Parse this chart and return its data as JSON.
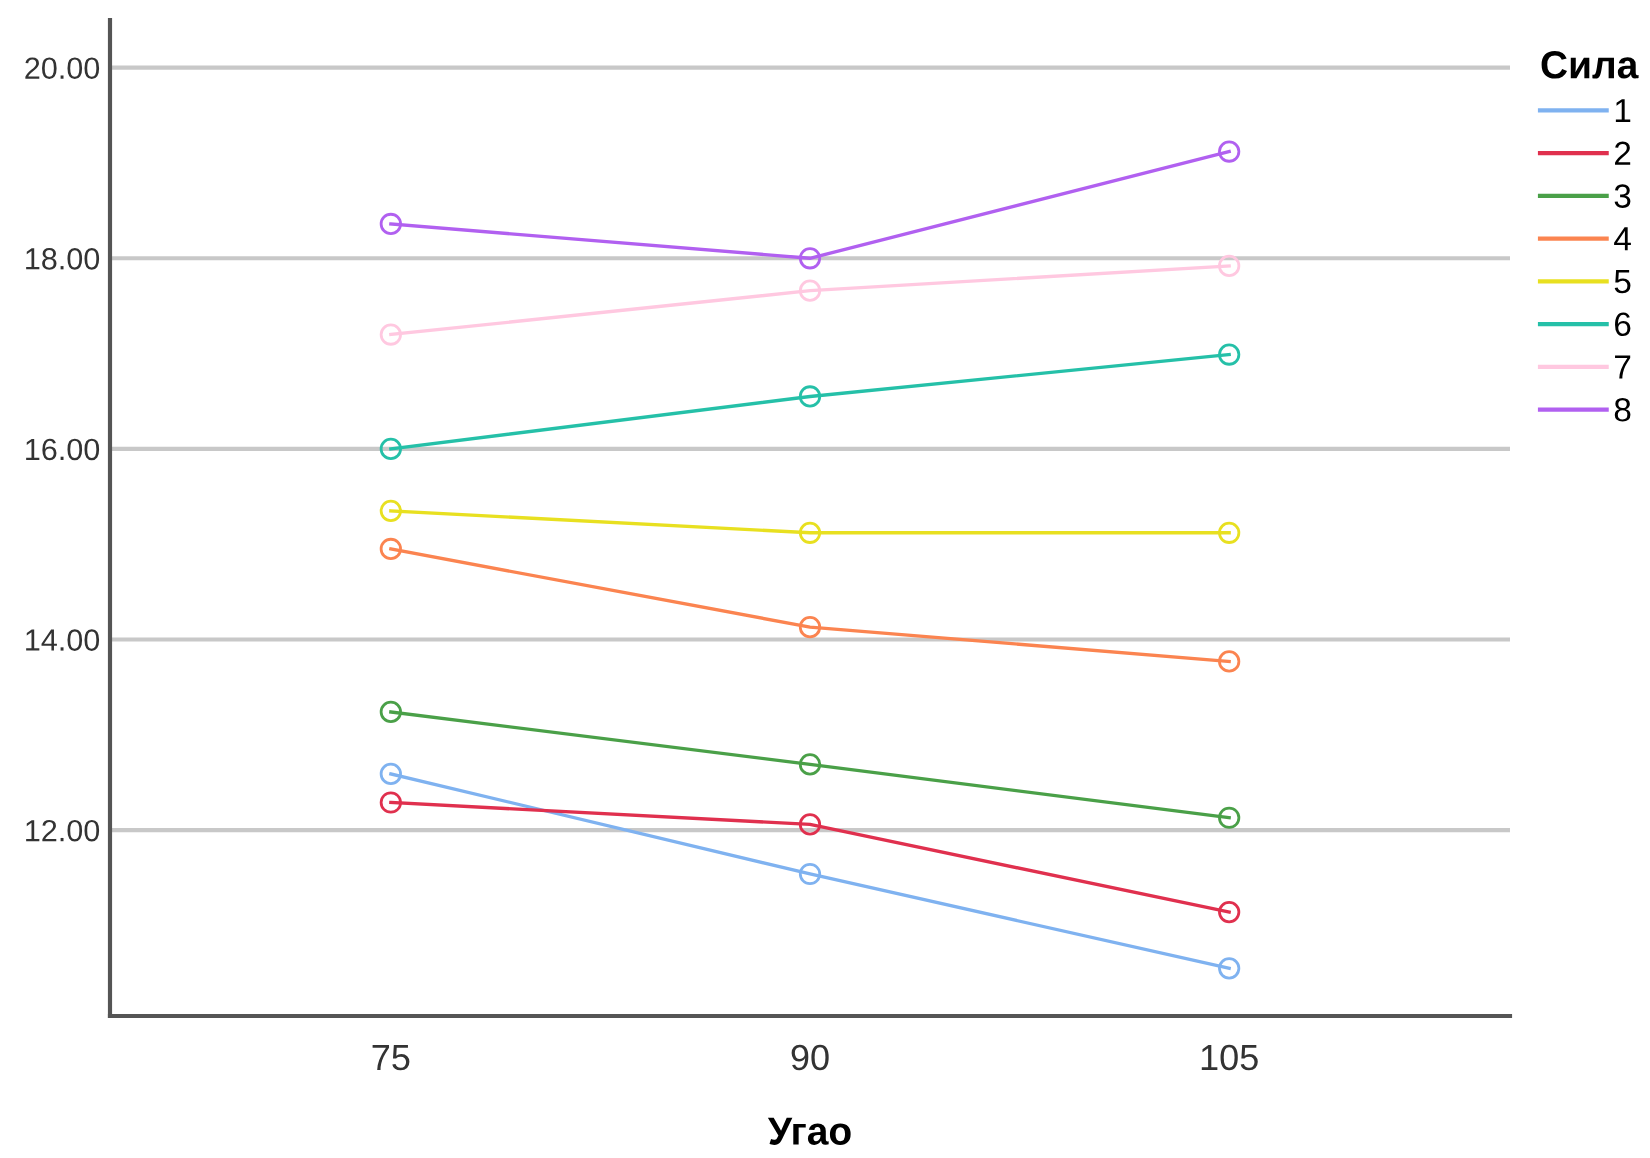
{
  "chart_data": {
    "type": "line",
    "xlabel": "Угао",
    "legend_title": "Сила",
    "categories": [
      "75",
      "90",
      "105"
    ],
    "series": [
      {
        "name": "1",
        "color": "#7fb2f0",
        "values": [
          12.59,
          11.54,
          10.55
        ]
      },
      {
        "name": "2",
        "color": "#e0304e",
        "values": [
          12.29,
          12.06,
          11.14
        ]
      },
      {
        "name": "3",
        "color": "#4aa048",
        "values": [
          13.24,
          12.69,
          12.13
        ]
      },
      {
        "name": "4",
        "color": "#fb8450",
        "values": [
          14.95,
          14.13,
          13.77
        ]
      },
      {
        "name": "5",
        "color": "#e8e020",
        "values": [
          15.35,
          15.12,
          15.12
        ]
      },
      {
        "name": "6",
        "color": "#25c0a8",
        "values": [
          16.0,
          16.55,
          16.99
        ]
      },
      {
        "name": "7",
        "color": "#ffc8e0",
        "values": [
          17.2,
          17.66,
          17.92
        ]
      },
      {
        "name": "8",
        "color": "#b160f0",
        "values": [
          18.36,
          18.0,
          19.12
        ]
      }
    ],
    "ylim": [
      10.05,
      20.5
    ],
    "yticks": [
      {
        "value": 12,
        "label": "12.00"
      },
      {
        "value": 14,
        "label": "14.00"
      },
      {
        "value": 16,
        "label": "16.00"
      },
      {
        "value": 18,
        "label": "18.00"
      },
      {
        "value": 20,
        "label": "20.00"
      }
    ],
    "grid": "y",
    "legend": "right",
    "marker": "circle",
    "line_style": "solid"
  }
}
